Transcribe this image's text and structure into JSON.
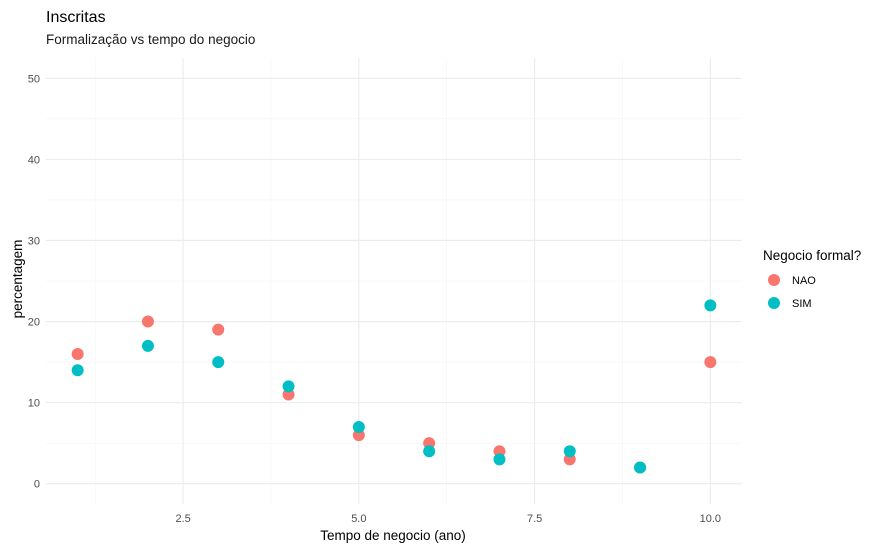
{
  "chart_data": {
    "type": "scatter",
    "title": "Inscritas",
    "subtitle": "Formalização vs tempo do negocio",
    "xlabel": "Tempo de negocio (ano)",
    "ylabel": "percentagem",
    "xlim": [
      0.55,
      10.45
    ],
    "ylim": [
      -2.5,
      52.5
    ],
    "x_ticks": [
      2.5,
      5.0,
      7.5,
      10.0
    ],
    "x_tick_labels": [
      "2.5",
      "5.0",
      "7.5",
      "10.0"
    ],
    "y_ticks": [
      0,
      10,
      20,
      30,
      40,
      50
    ],
    "y_tick_labels": [
      "0",
      "10",
      "20",
      "30",
      "40",
      "50"
    ],
    "grid": true,
    "legend": {
      "title": "Negocio formal?",
      "position": "right"
    },
    "series": [
      {
        "name": "NAO",
        "color": "#F8766D",
        "points": [
          [
            1,
            16
          ],
          [
            2,
            20
          ],
          [
            3,
            19
          ],
          [
            4,
            11
          ],
          [
            5,
            6
          ],
          [
            6,
            5
          ],
          [
            7,
            4
          ],
          [
            8,
            3
          ],
          [
            9,
            2
          ],
          [
            10,
            15
          ]
        ]
      },
      {
        "name": "SIM",
        "color": "#00BFC4",
        "points": [
          [
            1,
            14
          ],
          [
            2,
            17
          ],
          [
            3,
            15
          ],
          [
            4,
            12
          ],
          [
            5,
            7
          ],
          [
            6,
            4
          ],
          [
            7,
            3
          ],
          [
            8,
            4
          ],
          [
            9,
            2
          ],
          [
            10,
            22
          ]
        ]
      }
    ]
  }
}
